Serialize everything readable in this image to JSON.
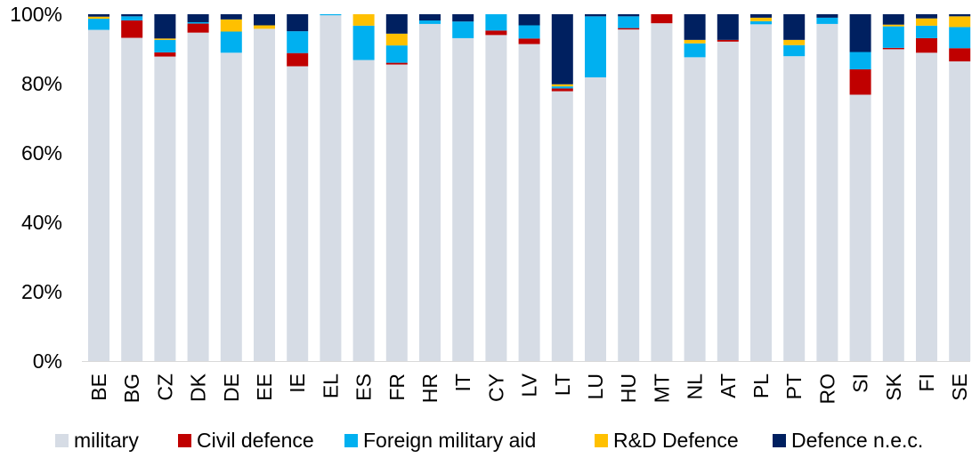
{
  "chart_data": {
    "type": "bar",
    "stacked": true,
    "title": "",
    "xlabel": "",
    "ylabel": "",
    "ylim": [
      0,
      100
    ],
    "y_ticks": [
      "0%",
      "20%",
      "40%",
      "60%",
      "80%",
      "100%"
    ],
    "y_tick_values": [
      0,
      20,
      40,
      60,
      80,
      100
    ],
    "grid": false,
    "legend_position": "bottom",
    "categories": [
      "BE",
      "BG",
      "CZ",
      "DK",
      "DE",
      "EE",
      "IE",
      "EL",
      "ES",
      "FR",
      "HR",
      "IT",
      "CY",
      "LV",
      "LT",
      "LU",
      "HU",
      "MT",
      "NL",
      "AT",
      "PL",
      "PT",
      "RO",
      "SI",
      "SK",
      "FI",
      "SE"
    ],
    "series": [
      {
        "name": "military",
        "color": "#D6DCE5",
        "values": [
          95.5,
          93.2,
          87.8,
          94.7,
          88.9,
          95.8,
          85.0,
          99.7,
          86.8,
          85.5,
          97.2,
          93.1,
          94.0,
          91.4,
          77.8,
          81.8,
          95.6,
          97.4,
          87.6,
          92.1,
          97.1,
          87.9,
          97.2,
          76.8,
          89.9,
          88.9,
          86.4
        ]
      },
      {
        "name": "Civil defence",
        "color": "#C00000",
        "values": [
          0.0,
          5.0,
          1.2,
          2.6,
          0.0,
          0.0,
          3.8,
          0.0,
          0.0,
          0.5,
          0.0,
          0.0,
          1.3,
          1.6,
          0.8,
          0.0,
          0.4,
          2.6,
          0.0,
          0.5,
          0.0,
          0.0,
          0.0,
          7.3,
          0.4,
          4.2,
          3.8
        ]
      },
      {
        "name": "Foreign military aid",
        "color": "#00B0F0",
        "values": [
          3.2,
          1.2,
          3.6,
          0.4,
          6.1,
          0.0,
          6.3,
          0.3,
          9.9,
          5.0,
          1.0,
          4.8,
          4.7,
          3.8,
          0.6,
          17.6,
          3.4,
          0.0,
          4.0,
          0.0,
          0.9,
          3.2,
          1.8,
          5.0,
          6.2,
          3.6,
          6.1
        ]
      },
      {
        "name": "R&D Defence",
        "color": "#FFC000",
        "values": [
          0.6,
          0.0,
          0.4,
          0.0,
          3.5,
          1.0,
          0.0,
          0.0,
          3.3,
          3.4,
          0.0,
          0.0,
          0.0,
          0.0,
          0.6,
          0.0,
          0.0,
          0.0,
          1.0,
          0.0,
          1.0,
          1.5,
          0.0,
          0.0,
          0.5,
          2.1,
          3.1
        ]
      },
      {
        "name": "Defence n.e.c.",
        "color": "#002060",
        "values": [
          0.7,
          0.6,
          7.0,
          2.3,
          1.5,
          3.2,
          4.9,
          0.0,
          0.0,
          5.6,
          1.8,
          2.1,
          0.0,
          3.2,
          20.2,
          0.6,
          0.6,
          0.0,
          7.4,
          7.4,
          1.0,
          7.4,
          1.0,
          10.9,
          3.0,
          1.2,
          0.6
        ]
      }
    ]
  }
}
